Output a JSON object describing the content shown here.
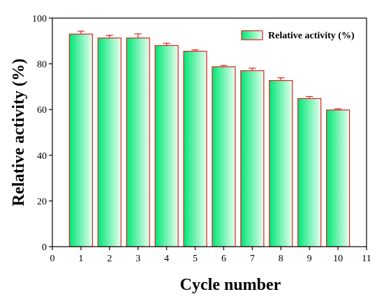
{
  "chart_data": {
    "type": "bar",
    "title": "",
    "xlabel": "Cycle number",
    "ylabel": "Relative activity (%)",
    "xlim": [
      0,
      11
    ],
    "ylim": [
      0,
      100
    ],
    "x_ticks": [
      "0",
      "1",
      "2",
      "3",
      "4",
      "5",
      "6",
      "7",
      "8",
      "9",
      "10",
      "11"
    ],
    "y_ticks": [
      "0",
      "20",
      "40",
      "60",
      "80",
      "100"
    ],
    "categories": [
      "1",
      "2",
      "3",
      "4",
      "5",
      "6",
      "7",
      "8",
      "9",
      "10"
    ],
    "series": [
      {
        "name": "Relative activity (%)",
        "x": [
          1,
          2,
          3,
          4,
          5,
          6,
          7,
          8,
          9,
          10
        ],
        "values": [
          93.0,
          91.3,
          91.3,
          88.0,
          85.5,
          78.7,
          77.0,
          72.7,
          64.8,
          59.8
        ],
        "error": [
          1.3,
          1.2,
          1.8,
          1.0,
          0.6,
          0.6,
          1.1,
          1.2,
          0.9,
          0.5
        ],
        "fill_colors": [
          "#00e676",
          "#e8fff0"
        ],
        "border_color": "#e02020"
      }
    ],
    "legend_position": "top-right",
    "grid": false
  }
}
